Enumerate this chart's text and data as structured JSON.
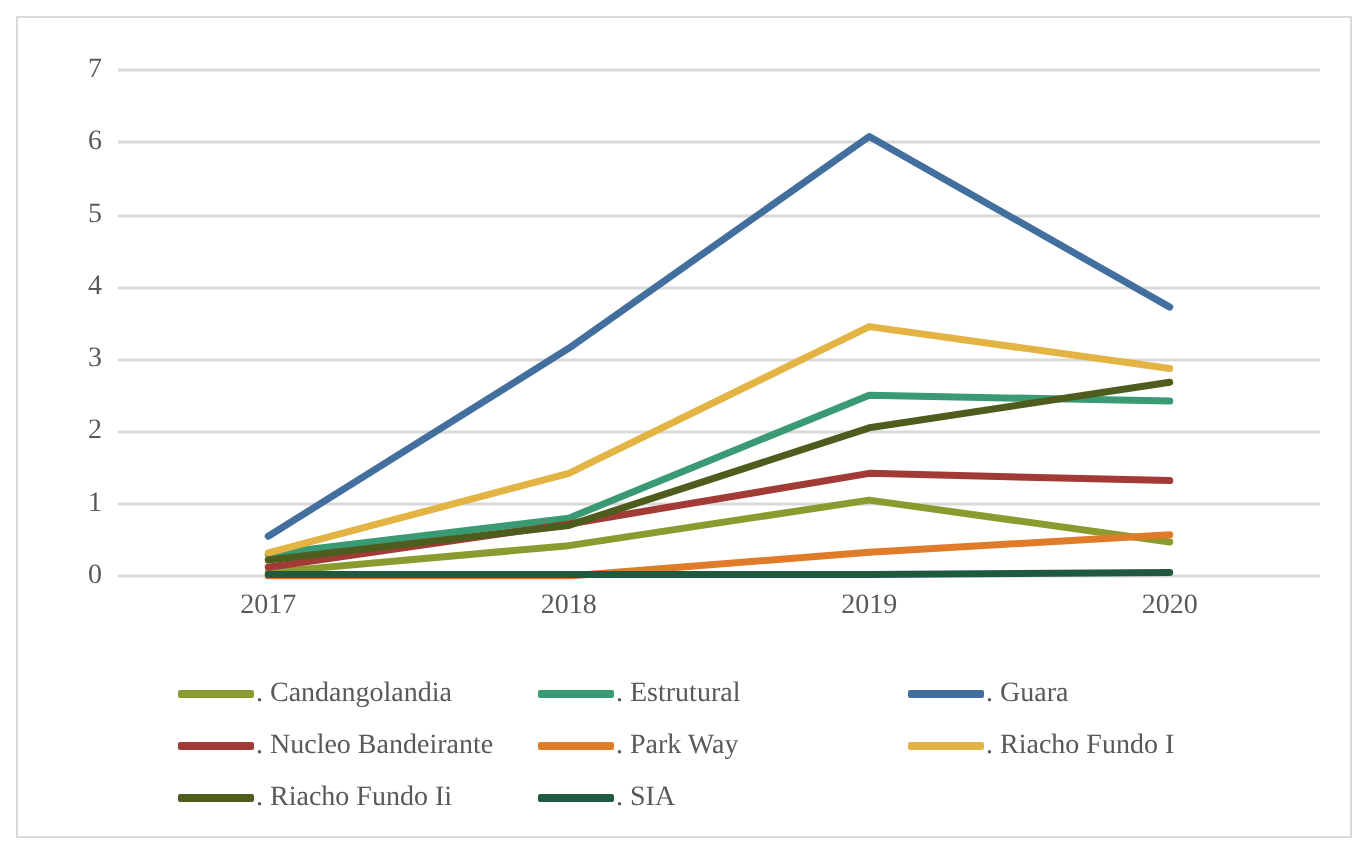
{
  "chart_data": {
    "type": "line",
    "categories": [
      "2017",
      "2018",
      "2019",
      "2020"
    ],
    "series": [
      {
        "name": ". Candangolandia",
        "color": "#8a9b2f",
        "values": [
          0.05,
          0.42,
          1.05,
          0.47
        ]
      },
      {
        "name": ". Estrutural",
        "color": "#3a9a74",
        "values": [
          0.3,
          0.8,
          2.5,
          2.42
        ]
      },
      {
        "name": ". Guara",
        "color": "#436f9f",
        "values": [
          0.55,
          3.15,
          6.08,
          3.72
        ]
      },
      {
        "name": ". Nucleo Bandeirante",
        "color": "#a23b35",
        "values": [
          0.12,
          0.72,
          1.42,
          1.32
        ]
      },
      {
        "name": ". Park Way",
        "color": "#e07b2a",
        "values": [
          0,
          0,
          0.33,
          0.57
        ]
      },
      {
        "name": ". Riacho Fundo I",
        "color": "#e3b443",
        "values": [
          0.32,
          1.42,
          3.45,
          2.87
        ]
      },
      {
        "name": ". Riacho Fundo Ii",
        "color": "#4e5c1e",
        "values": [
          0.22,
          0.7,
          2.05,
          2.68
        ]
      },
      {
        "name": ". SIA",
        "color": "#1f5a3e",
        "values": [
          0.02,
          0.02,
          0.02,
          0.05
        ]
      }
    ],
    "ylim": [
      0,
      7
    ],
    "yticks": [
      0,
      1,
      2,
      3,
      4,
      5,
      6,
      7
    ],
    "grid": "y",
    "legend": "bottom",
    "marker": "none",
    "line_style": "solid"
  }
}
